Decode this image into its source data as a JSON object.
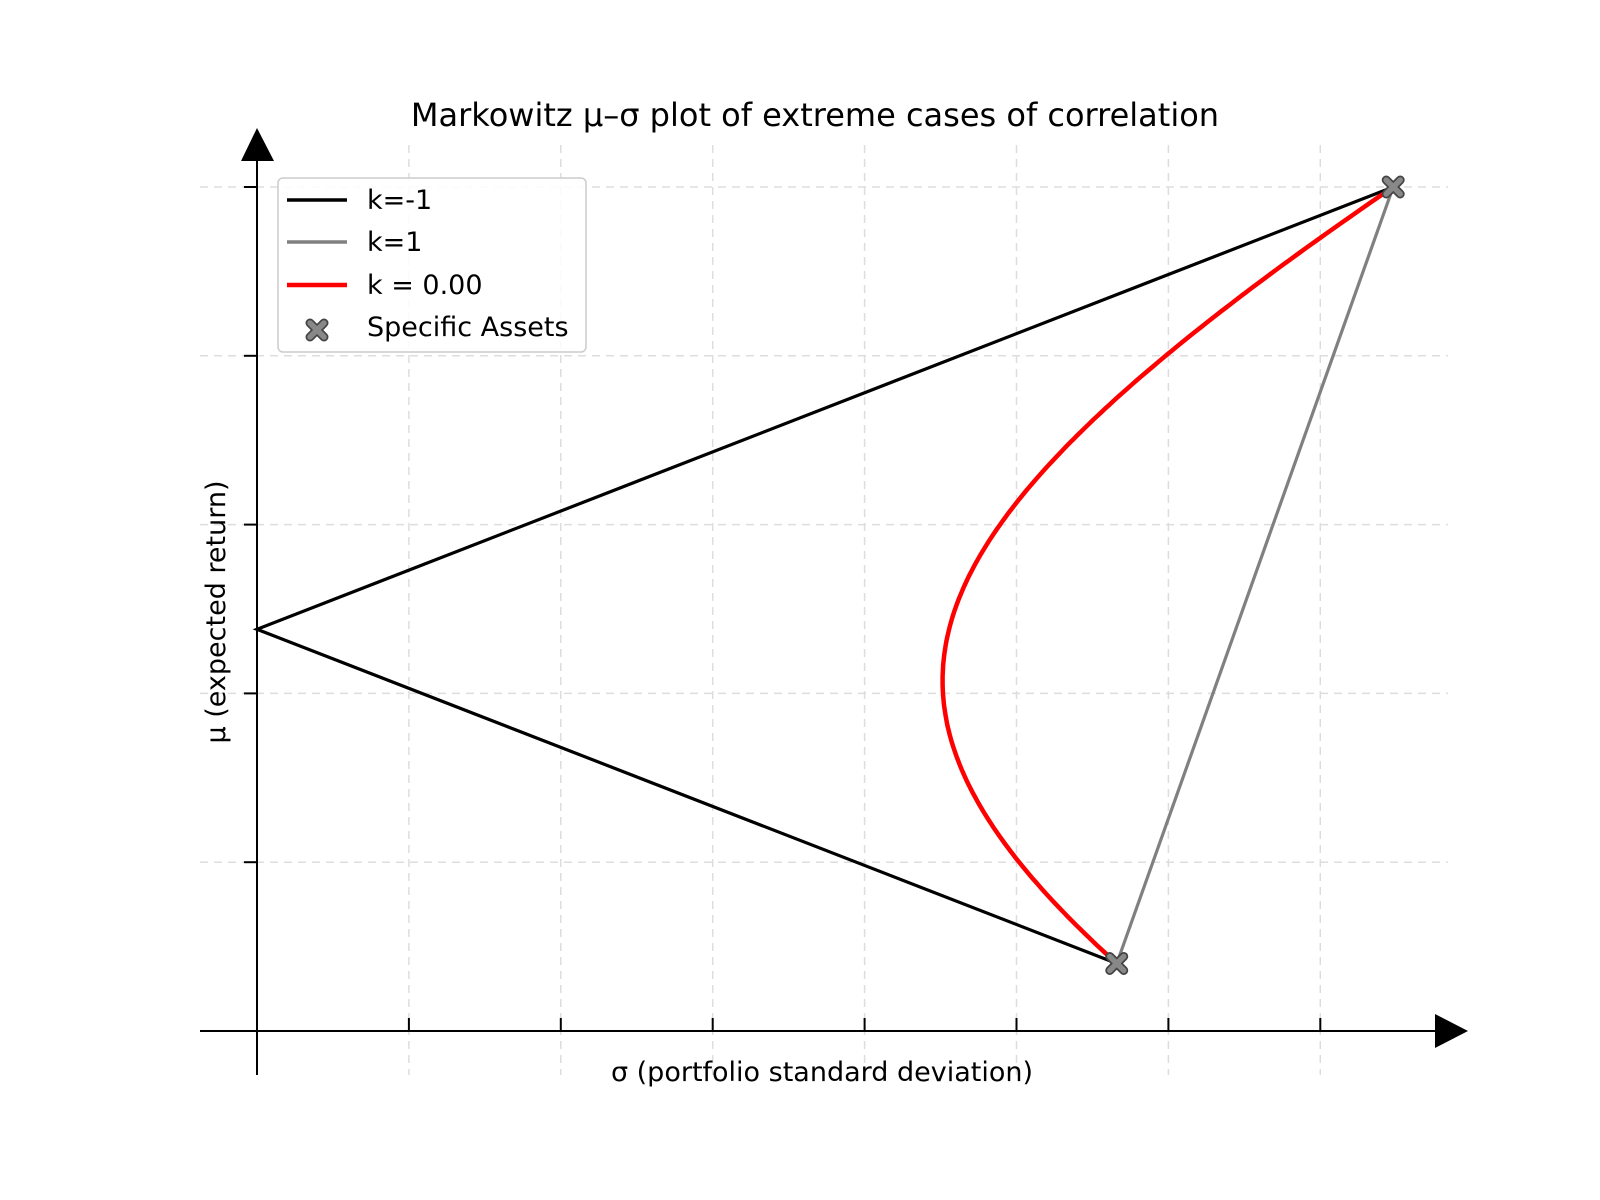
{
  "chart_data": {
    "type": "line",
    "title": "Markowitz μ–σ plot of extreme cases of correlation",
    "xlabel": "σ  (portfolio standard deviation)",
    "ylabel": "μ  (expected return)",
    "xlim": [
      0,
      8.2
    ],
    "ylim": [
      0,
      5.2
    ],
    "x_ticks": [
      0,
      1,
      2,
      3,
      4,
      5,
      6,
      7
    ],
    "y_ticks": [
      1,
      2,
      3,
      4,
      5
    ],
    "grid": true,
    "legend_position": "top-left",
    "assets": [
      {
        "x": 5.66,
        "y": 0.4
      },
      {
        "x": 7.48,
        "y": 5.0
      }
    ],
    "series": [
      {
        "name": "k=-1",
        "color": "#000000",
        "points": [
          [
            7.48,
            5.0
          ],
          [
            0.0,
            2.38
          ],
          [
            5.66,
            0.4
          ]
        ]
      },
      {
        "name": "k=1",
        "color": "#808080",
        "points": [
          [
            5.66,
            0.4
          ],
          [
            7.48,
            5.0
          ]
        ]
      },
      {
        "name": "k = 0.00",
        "color": "#ff0000",
        "curve": "k=0 combination of the two assets"
      },
      {
        "name": "Specific Assets",
        "color": "#666666",
        "marker": "x-marker"
      }
    ]
  }
}
